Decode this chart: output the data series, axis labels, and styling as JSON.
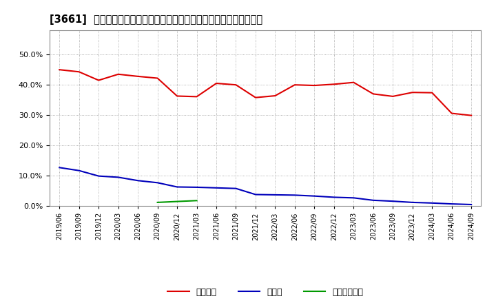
{
  "title": "[3661]  自己資本、のれん、繰延税金資産の総資産に対する比率の推移",
  "x_labels": [
    "2019/06",
    "2019/09",
    "2019/12",
    "2020/03",
    "2020/06",
    "2020/09",
    "2020/12",
    "2021/03",
    "2021/06",
    "2021/09",
    "2021/12",
    "2022/03",
    "2022/06",
    "2022/09",
    "2022/12",
    "2023/03",
    "2023/06",
    "2023/09",
    "2023/12",
    "2024/03",
    "2024/06",
    "2024/09"
  ],
  "equity": [
    0.45,
    0.443,
    0.415,
    0.435,
    0.428,
    0.422,
    0.363,
    0.361,
    0.405,
    0.4,
    0.358,
    0.364,
    0.4,
    0.398,
    0.402,
    0.408,
    0.37,
    0.362,
    0.375,
    0.374,
    0.306,
    0.299
  ],
  "noren": [
    0.127,
    0.117,
    0.099,
    0.095,
    0.084,
    0.077,
    0.063,
    0.062,
    0.06,
    0.058,
    0.038,
    0.037,
    0.036,
    0.033,
    0.029,
    0.027,
    0.019,
    0.016,
    0.012,
    0.01,
    0.007,
    0.005
  ],
  "dtax": [
    null,
    null,
    null,
    null,
    null,
    0.012,
    0.015,
    0.018,
    null,
    null,
    null,
    null,
    null,
    null,
    null,
    null,
    null,
    null,
    null,
    null,
    null,
    null
  ],
  "equity_color": "#dd0000",
  "noren_color": "#0000bb",
  "dtax_color": "#009900",
  "ylim": [
    0.0,
    0.58
  ],
  "yticks": [
    0.0,
    0.1,
    0.2,
    0.3,
    0.4,
    0.5
  ],
  "bg_color": "#ffffff",
  "plot_bg_color": "#ffffff",
  "grid_color": "#999999",
  "legend_labels": [
    "自己資本",
    "のれん",
    "繰延税金資産"
  ]
}
